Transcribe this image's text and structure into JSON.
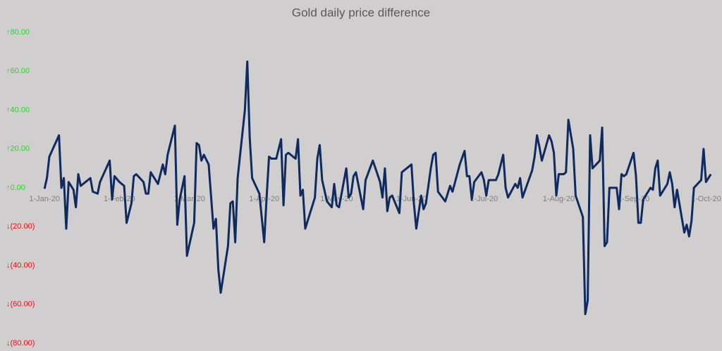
{
  "chart_data": {
    "type": "line",
    "title": "Gold daily price difference",
    "x": [
      "2020-01-01",
      "2020-01-02",
      "2020-01-03",
      "2020-01-07",
      "2020-01-08",
      "2020-01-09",
      "2020-01-10",
      "2020-01-11",
      "2020-01-13",
      "2020-01-14",
      "2020-01-15",
      "2020-01-16",
      "2020-01-18",
      "2020-01-20",
      "2020-01-21",
      "2020-01-23",
      "2020-01-24",
      "2020-01-28",
      "2020-01-29",
      "2020-01-30",
      "2020-02-01",
      "2020-02-03",
      "2020-02-04",
      "2020-02-06",
      "2020-02-07",
      "2020-02-08",
      "2020-02-11",
      "2020-02-12",
      "2020-02-13",
      "2020-02-14",
      "2020-02-17",
      "2020-02-19",
      "2020-02-20",
      "2020-02-21",
      "2020-02-24",
      "2020-02-25",
      "2020-02-26",
      "2020-02-28",
      "2020-02-29",
      "2020-03-03",
      "2020-03-04",
      "2020-03-05",
      "2020-03-06",
      "2020-03-07",
      "2020-03-09",
      "2020-03-11",
      "2020-03-12",
      "2020-03-13",
      "2020-03-14",
      "2020-03-17",
      "2020-03-18",
      "2020-03-19",
      "2020-03-20",
      "2020-03-21",
      "2020-03-24",
      "2020-03-25",
      "2020-03-26",
      "2020-03-27",
      "2020-03-30",
      "2020-04-01",
      "2020-04-02",
      "2020-04-03",
      "2020-04-04",
      "2020-04-06",
      "2020-04-08",
      "2020-04-09",
      "2020-04-10",
      "2020-04-11",
      "2020-04-14",
      "2020-04-15",
      "2020-04-16",
      "2020-04-17",
      "2020-04-18",
      "2020-04-22",
      "2020-04-23",
      "2020-04-24",
      "2020-04-25",
      "2020-04-27",
      "2020-04-29",
      "2020-04-30",
      "2020-05-01",
      "2020-05-02",
      "2020-05-05",
      "2020-05-06",
      "2020-05-07",
      "2020-05-08",
      "2020-05-09",
      "2020-05-12",
      "2020-05-13",
      "2020-05-16",
      "2020-05-19",
      "2020-05-20",
      "2020-05-21",
      "2020-05-22",
      "2020-05-23",
      "2020-05-24",
      "2020-05-27",
      "2020-05-28",
      "2020-06-01",
      "2020-06-02",
      "2020-06-03",
      "2020-06-05",
      "2020-06-06",
      "2020-06-07",
      "2020-06-09",
      "2020-06-10",
      "2020-06-11",
      "2020-06-12",
      "2020-06-15",
      "2020-06-17",
      "2020-06-18",
      "2020-06-21",
      "2020-06-23",
      "2020-06-24",
      "2020-06-25",
      "2020-06-26",
      "2020-06-27",
      "2020-06-30",
      "2020-07-01",
      "2020-07-02",
      "2020-07-03",
      "2020-07-06",
      "2020-07-07",
      "2020-07-09",
      "2020-07-10",
      "2020-07-11",
      "2020-07-14",
      "2020-07-15",
      "2020-07-16",
      "2020-07-17",
      "2020-07-21",
      "2020-07-22",
      "2020-07-23",
      "2020-07-24",
      "2020-07-25",
      "2020-07-28",
      "2020-07-29",
      "2020-07-30",
      "2020-07-31",
      "2020-08-01",
      "2020-08-03",
      "2020-08-04",
      "2020-08-05",
      "2020-08-07",
      "2020-08-08",
      "2020-08-11",
      "2020-08-12",
      "2020-08-13",
      "2020-08-14",
      "2020-08-15",
      "2020-08-18",
      "2020-08-19",
      "2020-08-20",
      "2020-08-21",
      "2020-08-22",
      "2020-08-25",
      "2020-08-26",
      "2020-08-27",
      "2020-08-28",
      "2020-08-29",
      "2020-09-01",
      "2020-09-02",
      "2020-09-03",
      "2020-09-04",
      "2020-09-05",
      "2020-09-08",
      "2020-09-09",
      "2020-09-10",
      "2020-09-11",
      "2020-09-12",
      "2020-09-15",
      "2020-09-16",
      "2020-09-17",
      "2020-09-18",
      "2020-09-19",
      "2020-09-22",
      "2020-09-23",
      "2020-09-24",
      "2020-09-25",
      "2020-09-26",
      "2020-09-29",
      "2020-09-30",
      "2020-10-01",
      "2020-10-03"
    ],
    "values": [
      -0.5,
      5,
      16,
      27,
      0,
      5,
      -21,
      3,
      -1,
      -10,
      7,
      1,
      3,
      5,
      -2,
      -3,
      3,
      14,
      -6,
      6,
      3,
      1,
      -18,
      -8,
      6,
      7,
      3,
      -3,
      -3,
      8,
      2,
      12,
      7,
      17,
      32,
      -19,
      -6,
      6,
      -35,
      -18,
      23,
      22,
      14,
      17,
      12,
      -21,
      -16,
      -42,
      -54,
      -30,
      -8,
      -7,
      -28,
      5,
      40,
      65,
      26,
      5,
      -3,
      -28,
      -5,
      16,
      15,
      15,
      25,
      -9,
      17,
      18,
      15,
      25,
      -4,
      -1,
      -21,
      -5,
      15,
      22,
      4,
      -7,
      -10,
      2,
      -9,
      -10,
      10,
      -5,
      -3,
      6,
      8,
      -11,
      4,
      14,
      3,
      -5,
      10,
      -12,
      -5,
      -4,
      -13,
      8,
      12,
      -8,
      -21,
      -4,
      -11,
      -8,
      10,
      17,
      18,
      -2,
      -7,
      1,
      -2,
      12,
      19,
      6,
      6,
      -6,
      3,
      8,
      4,
      -4,
      4,
      4,
      7,
      17,
      0,
      -5,
      2,
      0,
      5,
      -5,
      9,
      16,
      27,
      21,
      14,
      27,
      24,
      18,
      -4,
      7,
      7,
      8,
      35,
      20,
      -4,
      -15,
      -65,
      -58,
      27,
      10,
      14,
      31,
      -30,
      -28,
      0,
      0,
      -11,
      7,
      6,
      7,
      18,
      6,
      -18,
      -18,
      -6,
      0,
      -1,
      10,
      14,
      -4,
      2,
      8,
      2,
      -10,
      -1,
      -23,
      -19,
      -25,
      -17,
      0,
      4,
      20,
      3,
      7
    ],
    "color": "#0e2a5e",
    "xlim": [
      "2019-12-27",
      "2020-10-05"
    ],
    "xticks": [
      {
        "value": "2020-01-01",
        "label": "1-Jan-20"
      },
      {
        "value": "2020-02-01",
        "label": "1-Feb-20"
      },
      {
        "value": "2020-03-01",
        "label": "1-Mar-20"
      },
      {
        "value": "2020-04-01",
        "label": "1-Apr-20"
      },
      {
        "value": "2020-05-01",
        "label": "1-May-20"
      },
      {
        "value": "2020-06-01",
        "label": "1-Jun-20"
      },
      {
        "value": "2020-07-01",
        "label": "1-Jul-20"
      },
      {
        "value": "2020-08-01",
        "label": "1-Aug-20"
      },
      {
        "value": "2020-09-01",
        "label": "1-Sep-20"
      },
      {
        "value": "2020-10-01",
        "label": "1-Oct-20"
      }
    ],
    "ylim": [
      -80,
      80
    ],
    "yticks": [
      {
        "value": 80,
        "label": "↑80.00"
      },
      {
        "value": 60,
        "label": "↑60.00"
      },
      {
        "value": 40,
        "label": "↑40.00"
      },
      {
        "value": 20,
        "label": "↑20.00"
      },
      {
        "value": 0,
        "label": "↑0.00"
      },
      {
        "value": -20,
        "label": "↓(20.00)"
      },
      {
        "value": -40,
        "label": "↓(40.00)"
      },
      {
        "value": -60,
        "label": "↓(60.00)"
      },
      {
        "value": -80,
        "label": "↓(80.00)"
      }
    ],
    "positive_color": "#22dd22",
    "negative_color": "#ee1111",
    "grid": false
  }
}
